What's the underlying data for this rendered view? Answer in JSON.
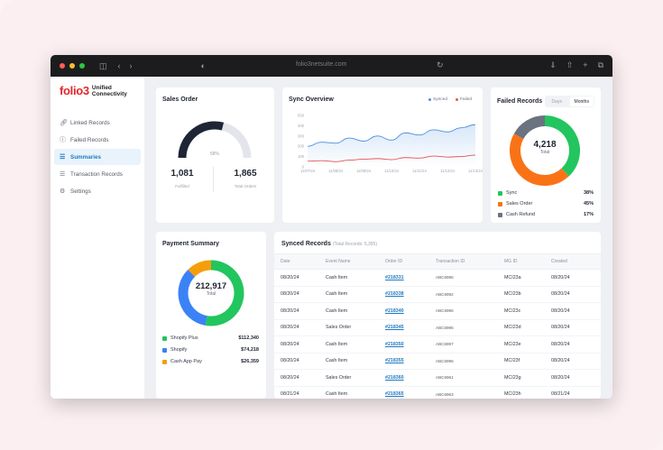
{
  "browser": {
    "url": "folio3netsuite.com"
  },
  "brand": {
    "logo_text": "folio3",
    "subtitle_line1": "Unified",
    "subtitle_line2": "Connectivity"
  },
  "sidebar": {
    "items": [
      {
        "label": "Linked Records",
        "icon": "link-icon"
      },
      {
        "label": "Failed Records",
        "icon": "alert-circle-icon"
      },
      {
        "label": "Summaries",
        "icon": "list-icon",
        "active": true
      },
      {
        "label": "Transaction Records",
        "icon": "list-icon"
      },
      {
        "label": "Settings",
        "icon": "gear-icon"
      }
    ]
  },
  "sales_order": {
    "title": "Sales Order",
    "gauge_label": "58%",
    "gauge_fraction": 0.58,
    "left_value": "1,081",
    "left_label": "Fulfilled",
    "right_value": "1,865",
    "right_label": "Total Orders"
  },
  "sync_overview": {
    "title": "Sync Overview",
    "legend_synced": "Synced",
    "legend_failed": "Failed"
  },
  "failed_records": {
    "title": "Failed Records",
    "toggle_days": "Days",
    "toggle_months": "Months",
    "total_value": "4,218",
    "total_label": "Total",
    "legend": [
      {
        "label": "Sync",
        "pct": "38%",
        "value": 38,
        "color": "#22c55e"
      },
      {
        "label": "Sales Order",
        "pct": "45%",
        "value": 45,
        "color": "#f97316"
      },
      {
        "label": "Cash Refund",
        "pct": "17%",
        "value": 17,
        "color": "#6b7280"
      }
    ]
  },
  "payment_summary": {
    "title": "Payment Summary",
    "total_value": "212,917",
    "total_label": "Total",
    "legend": [
      {
        "label": "Shopify Plus",
        "amount": "$112,340",
        "value": 112340,
        "color": "#22c55e"
      },
      {
        "label": "Shopify",
        "amount": "$74,218",
        "value": 74218,
        "color": "#3b82f6"
      },
      {
        "label": "Cash App Pay",
        "amount": "$26,359",
        "value": 26359,
        "color": "#f59e0b"
      }
    ]
  },
  "synced_records": {
    "title": "Synced Records",
    "subtitle": "(Total Records: 5,355)",
    "columns": [
      "Date",
      "Event Name",
      "Order ID",
      "Transaction ID",
      "MG ID",
      "Created"
    ],
    "rows": [
      [
        "08/20/24",
        "Cash Item",
        "#218331",
        "ABC6996",
        "MCI23a",
        "08/20/24"
      ],
      [
        "08/20/24",
        "Cash Item",
        "#218338",
        "ABC6992",
        "MCI23b",
        "08/20/24"
      ],
      [
        "08/20/24",
        "Cash Item",
        "#218340",
        "ABC6996",
        "MCI23c",
        "08/20/24"
      ],
      [
        "08/20/24",
        "Sales Order",
        "#218345",
        "ABC6996",
        "MCI23d",
        "08/20/24"
      ],
      [
        "08/20/24",
        "Cash Item",
        "#218350",
        "ABC6997",
        "MCI23e",
        "08/20/24"
      ],
      [
        "08/20/24",
        "Cash Item",
        "#218355",
        "ABC6996",
        "MCI23f",
        "08/20/24"
      ],
      [
        "08/20/24",
        "Sales Order",
        "#218360",
        "ABC6961",
        "MCI23g",
        "08/20/24"
      ],
      [
        "08/21/24",
        "Cash Item",
        "#218365",
        "ABC6963",
        "MCI23h",
        "08/21/24"
      ]
    ]
  },
  "chart_data": {
    "type": "line",
    "x": [
      "11/07/24",
      "11/08/24",
      "11/09/24",
      "11/10/24",
      "11/11/24",
      "11/12/24",
      "11/13/24",
      "11/14/24",
      "11/15/24",
      "11/16/24",
      "11/17/24",
      "11/18/24",
      "11/19/24"
    ],
    "x_ticks": [
      "11/07/24",
      "11/08/24",
      "11/09/24",
      "11/10/24",
      "11/11/24",
      "11/12/24",
      "11/13/24"
    ],
    "series": [
      {
        "name": "Synced",
        "color": "#4a8fe0",
        "values": [
          200,
          240,
          230,
          280,
          250,
          300,
          260,
          330,
          310,
          360,
          340,
          380,
          410
        ]
      },
      {
        "name": "Failed",
        "color": "#e25555",
        "values": [
          55,
          60,
          50,
          65,
          75,
          80,
          70,
          90,
          85,
          105,
          95,
          100,
          115
        ]
      }
    ],
    "y_ticks": [
      0,
      100,
      200,
      300,
      400,
      500
    ],
    "ylim": [
      0,
      500
    ],
    "grid": false,
    "legend": "top-right"
  }
}
